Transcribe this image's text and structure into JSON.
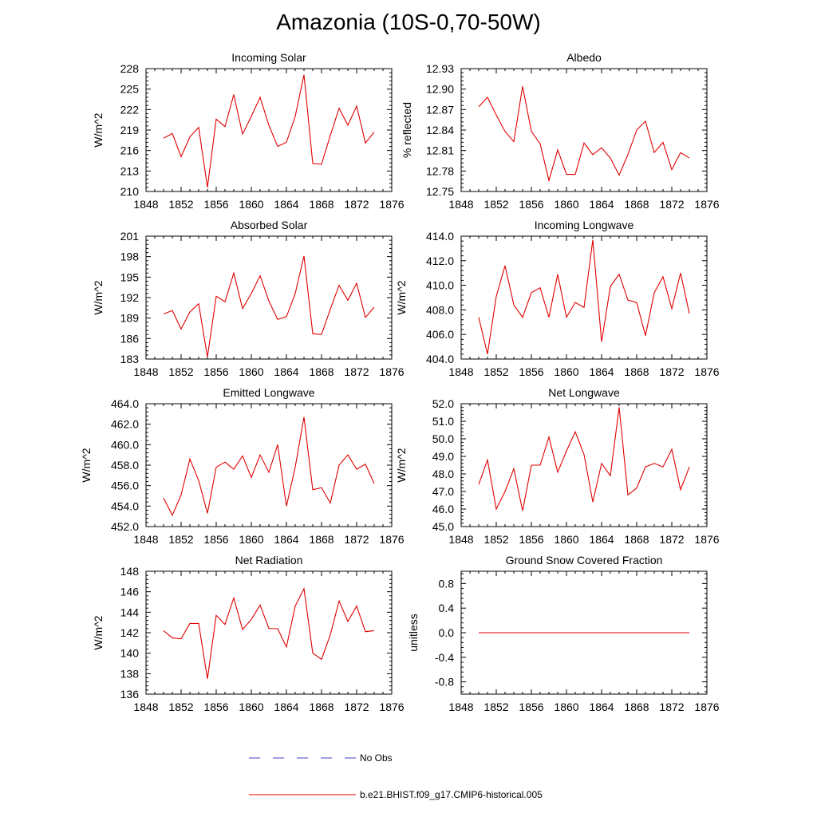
{
  "figure_title": "Amazonia (10S-0,70-50W)",
  "legend": [
    {
      "label": "No Obs",
      "color": "#4040c0",
      "style": "dashed"
    },
    {
      "label": "b.e21.BHIST.f09_g17.CMIP6-historical.005",
      "color": "#e00000",
      "style": "solid"
    }
  ],
  "chart_data": [
    {
      "type": "line",
      "title": "Incoming Solar",
      "xlabel": "",
      "ylabel": "W/m^2",
      "xlim": [
        1848,
        1876
      ],
      "ylim": [
        210,
        228
      ],
      "xticks": [
        1848,
        1852,
        1856,
        1860,
        1864,
        1868,
        1872,
        1876
      ],
      "yticks": [
        210,
        213,
        216,
        219,
        222,
        225,
        228
      ],
      "ytick_decimals": 0,
      "x": [
        1850,
        1851,
        1852,
        1853,
        1854,
        1855,
        1856,
        1857,
        1858,
        1859,
        1860,
        1861,
        1862,
        1863,
        1864,
        1865,
        1866,
        1867,
        1868,
        1869,
        1870,
        1871,
        1872,
        1873,
        1874
      ],
      "series": [
        {
          "color": "#e00000",
          "values": [
            217.8,
            218.5,
            215.1,
            218.0,
            219.4,
            210.6,
            220.6,
            219.5,
            224.2,
            218.4,
            221.0,
            223.8,
            219.7,
            216.6,
            217.2,
            221.0,
            227.1,
            214.1,
            214.0,
            218.2,
            222.2,
            219.7,
            222.5,
            217.1,
            218.7
          ]
        }
      ]
    },
    {
      "type": "line",
      "title": "Albedo",
      "xlabel": "",
      "ylabel": "% reflected",
      "xlim": [
        1848,
        1876
      ],
      "ylim": [
        12.75,
        12.93
      ],
      "xticks": [
        1848,
        1852,
        1856,
        1860,
        1864,
        1868,
        1872,
        1876
      ],
      "yticks": [
        12.75,
        12.78,
        12.81,
        12.84,
        12.87,
        12.9,
        12.93
      ],
      "ytick_decimals": 2,
      "x": [
        1850,
        1851,
        1852,
        1853,
        1854,
        1855,
        1856,
        1857,
        1858,
        1859,
        1860,
        1861,
        1862,
        1863,
        1864,
        1865,
        1866,
        1867,
        1868,
        1869,
        1870,
        1871,
        1872,
        1873,
        1874
      ],
      "series": [
        {
          "color": "#e00000",
          "values": [
            12.874,
            12.888,
            12.862,
            12.838,
            12.823,
            12.904,
            12.838,
            12.82,
            12.766,
            12.811,
            12.775,
            12.775,
            12.821,
            12.804,
            12.814,
            12.799,
            12.774,
            12.804,
            12.84,
            12.853,
            12.807,
            12.822,
            12.782,
            12.807,
            12.799
          ]
        }
      ]
    },
    {
      "type": "line",
      "title": "Absorbed Solar",
      "xlabel": "",
      "ylabel": "W/m^2",
      "xlim": [
        1848,
        1876
      ],
      "ylim": [
        183,
        201
      ],
      "xticks": [
        1848,
        1852,
        1856,
        1860,
        1864,
        1868,
        1872,
        1876
      ],
      "yticks": [
        183,
        186,
        189,
        192,
        195,
        198,
        201
      ],
      "ytick_decimals": 0,
      "x": [
        1850,
        1851,
        1852,
        1853,
        1854,
        1855,
        1856,
        1857,
        1858,
        1859,
        1860,
        1861,
        1862,
        1863,
        1864,
        1865,
        1866,
        1867,
        1868,
        1869,
        1870,
        1871,
        1872,
        1873,
        1874
      ],
      "series": [
        {
          "color": "#e00000",
          "values": [
            189.6,
            190.1,
            187.4,
            189.9,
            191.1,
            183.3,
            192.2,
            191.4,
            195.6,
            190.4,
            192.6,
            195.2,
            191.5,
            188.8,
            189.2,
            192.6,
            198.1,
            186.7,
            186.6,
            190.3,
            193.8,
            191.6,
            194.1,
            189.1,
            190.6
          ]
        }
      ]
    },
    {
      "type": "line",
      "title": "Incoming Longwave",
      "xlabel": "",
      "ylabel": "W/m^2",
      "xlim": [
        1848,
        1876
      ],
      "ylim": [
        404,
        414
      ],
      "xticks": [
        1848,
        1852,
        1856,
        1860,
        1864,
        1868,
        1872,
        1876
      ],
      "yticks": [
        404,
        406,
        408,
        410,
        412,
        414
      ],
      "ytick_decimals": 1,
      "x": [
        1850,
        1851,
        1852,
        1853,
        1854,
        1855,
        1856,
        1857,
        1858,
        1859,
        1860,
        1861,
        1862,
        1863,
        1864,
        1865,
        1866,
        1867,
        1868,
        1869,
        1870,
        1871,
        1872,
        1873,
        1874
      ],
      "series": [
        {
          "color": "#e00000",
          "values": [
            407.4,
            404.4,
            409.1,
            411.6,
            408.4,
            407.4,
            409.4,
            409.8,
            407.4,
            410.9,
            407.4,
            408.6,
            408.2,
            413.7,
            405.4,
            409.9,
            410.9,
            408.8,
            408.6,
            405.9,
            409.4,
            410.7,
            408.1,
            411.0,
            407.7
          ]
        }
      ]
    },
    {
      "type": "line",
      "title": "Emitted Longwave",
      "xlabel": "",
      "ylabel": "W/m^2",
      "xlim": [
        1848,
        1876
      ],
      "ylim": [
        452,
        464
      ],
      "xticks": [
        1848,
        1852,
        1856,
        1860,
        1864,
        1868,
        1872,
        1876
      ],
      "yticks": [
        452,
        454,
        456,
        458,
        460,
        462,
        464
      ],
      "ytick_decimals": 1,
      "x": [
        1850,
        1851,
        1852,
        1853,
        1854,
        1855,
        1856,
        1857,
        1858,
        1859,
        1860,
        1861,
        1862,
        1863,
        1864,
        1865,
        1866,
        1867,
        1868,
        1869,
        1870,
        1871,
        1872,
        1873,
        1874
      ],
      "series": [
        {
          "color": "#e00000",
          "values": [
            454.8,
            453.1,
            455.1,
            458.6,
            456.5,
            453.3,
            457.8,
            458.3,
            457.6,
            458.9,
            456.8,
            459.0,
            457.3,
            460.0,
            454.0,
            457.8,
            462.7,
            455.6,
            455.8,
            454.3,
            458.0,
            459.0,
            457.6,
            458.1,
            456.2
          ]
        }
      ]
    },
    {
      "type": "line",
      "title": "Net Longwave",
      "xlabel": "",
      "ylabel": "W/m^2",
      "xlim": [
        1848,
        1876
      ],
      "ylim": [
        45,
        52
      ],
      "xticks": [
        1848,
        1852,
        1856,
        1860,
        1864,
        1868,
        1872,
        1876
      ],
      "yticks": [
        45,
        46,
        47,
        48,
        49,
        50,
        51,
        52
      ],
      "ytick_decimals": 1,
      "x": [
        1850,
        1851,
        1852,
        1853,
        1854,
        1855,
        1856,
        1857,
        1858,
        1859,
        1860,
        1861,
        1862,
        1863,
        1864,
        1865,
        1866,
        1867,
        1868,
        1869,
        1870,
        1871,
        1872,
        1873,
        1874
      ],
      "series": [
        {
          "color": "#e00000",
          "values": [
            47.4,
            48.8,
            46.0,
            47.0,
            48.3,
            45.9,
            48.5,
            48.5,
            50.1,
            48.1,
            49.3,
            50.4,
            49.1,
            46.4,
            48.6,
            47.9,
            51.8,
            46.8,
            47.2,
            48.4,
            48.6,
            48.4,
            49.4,
            47.1,
            48.4
          ]
        }
      ]
    },
    {
      "type": "line",
      "title": "Net Radiation",
      "xlabel": "",
      "ylabel": "W/m^2",
      "xlim": [
        1848,
        1876
      ],
      "ylim": [
        136,
        148
      ],
      "xticks": [
        1848,
        1852,
        1856,
        1860,
        1864,
        1868,
        1872,
        1876
      ],
      "yticks": [
        136,
        138,
        140,
        142,
        144,
        146,
        148
      ],
      "ytick_decimals": 0,
      "x": [
        1850,
        1851,
        1852,
        1853,
        1854,
        1855,
        1856,
        1857,
        1858,
        1859,
        1860,
        1861,
        1862,
        1863,
        1864,
        1865,
        1866,
        1867,
        1868,
        1869,
        1870,
        1871,
        1872,
        1873,
        1874
      ],
      "series": [
        {
          "color": "#e00000",
          "values": [
            142.2,
            141.5,
            141.4,
            142.9,
            142.9,
            137.5,
            143.7,
            142.8,
            145.4,
            142.3,
            143.3,
            144.7,
            142.4,
            142.4,
            140.6,
            144.6,
            146.3,
            140.0,
            139.4,
            141.8,
            145.1,
            143.1,
            144.6,
            142.1,
            142.2
          ]
        }
      ]
    },
    {
      "type": "line",
      "title": "Ground Snow Covered Fraction",
      "xlabel": "",
      "ylabel": "unitless",
      "xlim": [
        1848,
        1876
      ],
      "ylim": [
        -1.0,
        1.0
      ],
      "xticks": [
        1848,
        1852,
        1856,
        1860,
        1864,
        1868,
        1872,
        1876
      ],
      "yticks": [
        -0.8,
        -0.4,
        0.0,
        0.4,
        0.8
      ],
      "ytick_decimals": 1,
      "x": [
        1850,
        1851,
        1852,
        1853,
        1854,
        1855,
        1856,
        1857,
        1858,
        1859,
        1860,
        1861,
        1862,
        1863,
        1864,
        1865,
        1866,
        1867,
        1868,
        1869,
        1870,
        1871,
        1872,
        1873,
        1874
      ],
      "series": [
        {
          "color": "#e00000",
          "values": [
            0,
            0,
            0,
            0,
            0,
            0,
            0,
            0,
            0,
            0,
            0,
            0,
            0,
            0,
            0,
            0,
            0,
            0,
            0,
            0,
            0,
            0,
            0,
            0,
            0
          ]
        }
      ]
    }
  ]
}
